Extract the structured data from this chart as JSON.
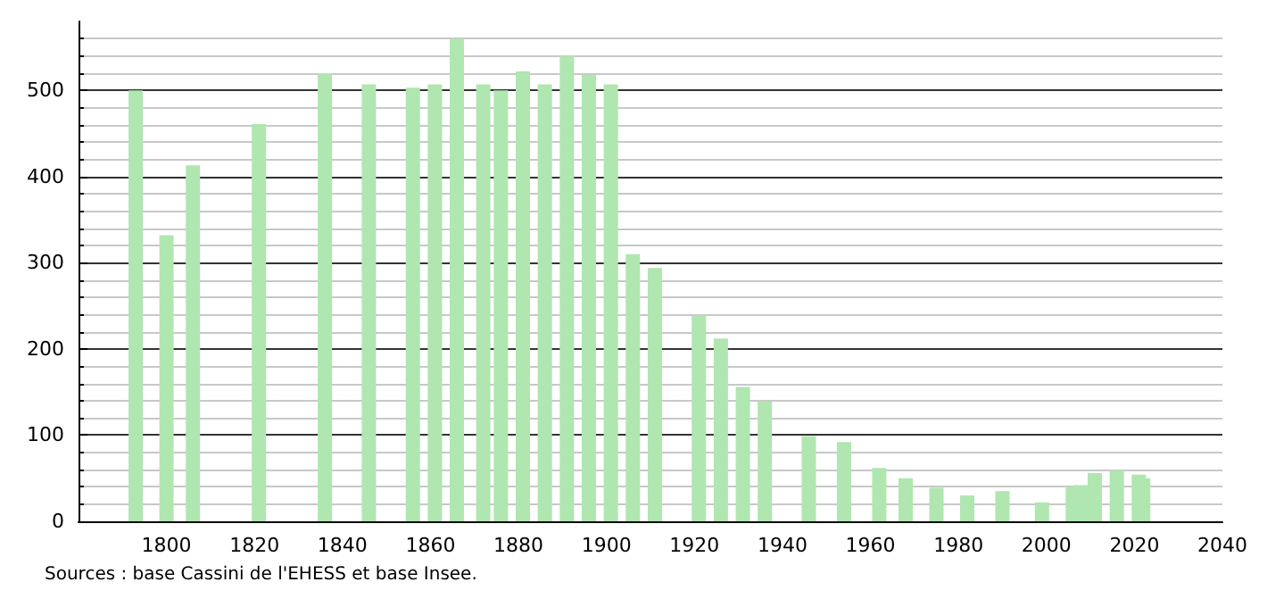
{
  "chart_data": {
    "type": "bar",
    "x": [
      1793,
      1800,
      1806,
      1821,
      1836,
      1846,
      1856,
      1861,
      1866,
      1872,
      1876,
      1881,
      1886,
      1891,
      1896,
      1901,
      1906,
      1911,
      1921,
      1926,
      1931,
      1936,
      1946,
      1954,
      1962,
      1968,
      1975,
      1982,
      1990,
      1999,
      2006,
      2008,
      2011,
      2016,
      2021,
      2022
    ],
    "values": [
      500,
      332,
      413,
      461,
      520,
      507,
      503,
      507,
      560,
      507,
      500,
      522,
      507,
      540,
      518,
      507,
      310,
      294,
      239,
      212,
      156,
      139,
      99,
      92,
      62,
      50,
      39,
      30,
      35,
      22,
      40,
      42,
      56,
      59,
      54,
      50
    ],
    "color": "#b0e6b0",
    "xlim": [
      1780,
      2040
    ],
    "xticks": [
      1800,
      1820,
      1840,
      1860,
      1880,
      1900,
      1920,
      1940,
      1960,
      1980,
      2000,
      2020,
      2040
    ],
    "ylim": [
      0,
      580
    ],
    "yticks": [
      0,
      100,
      200,
      300,
      400,
      500
    ],
    "grid": "y",
    "annotations": [
      "Sources : base Cassini de l'EHESS et base Insee."
    ]
  }
}
